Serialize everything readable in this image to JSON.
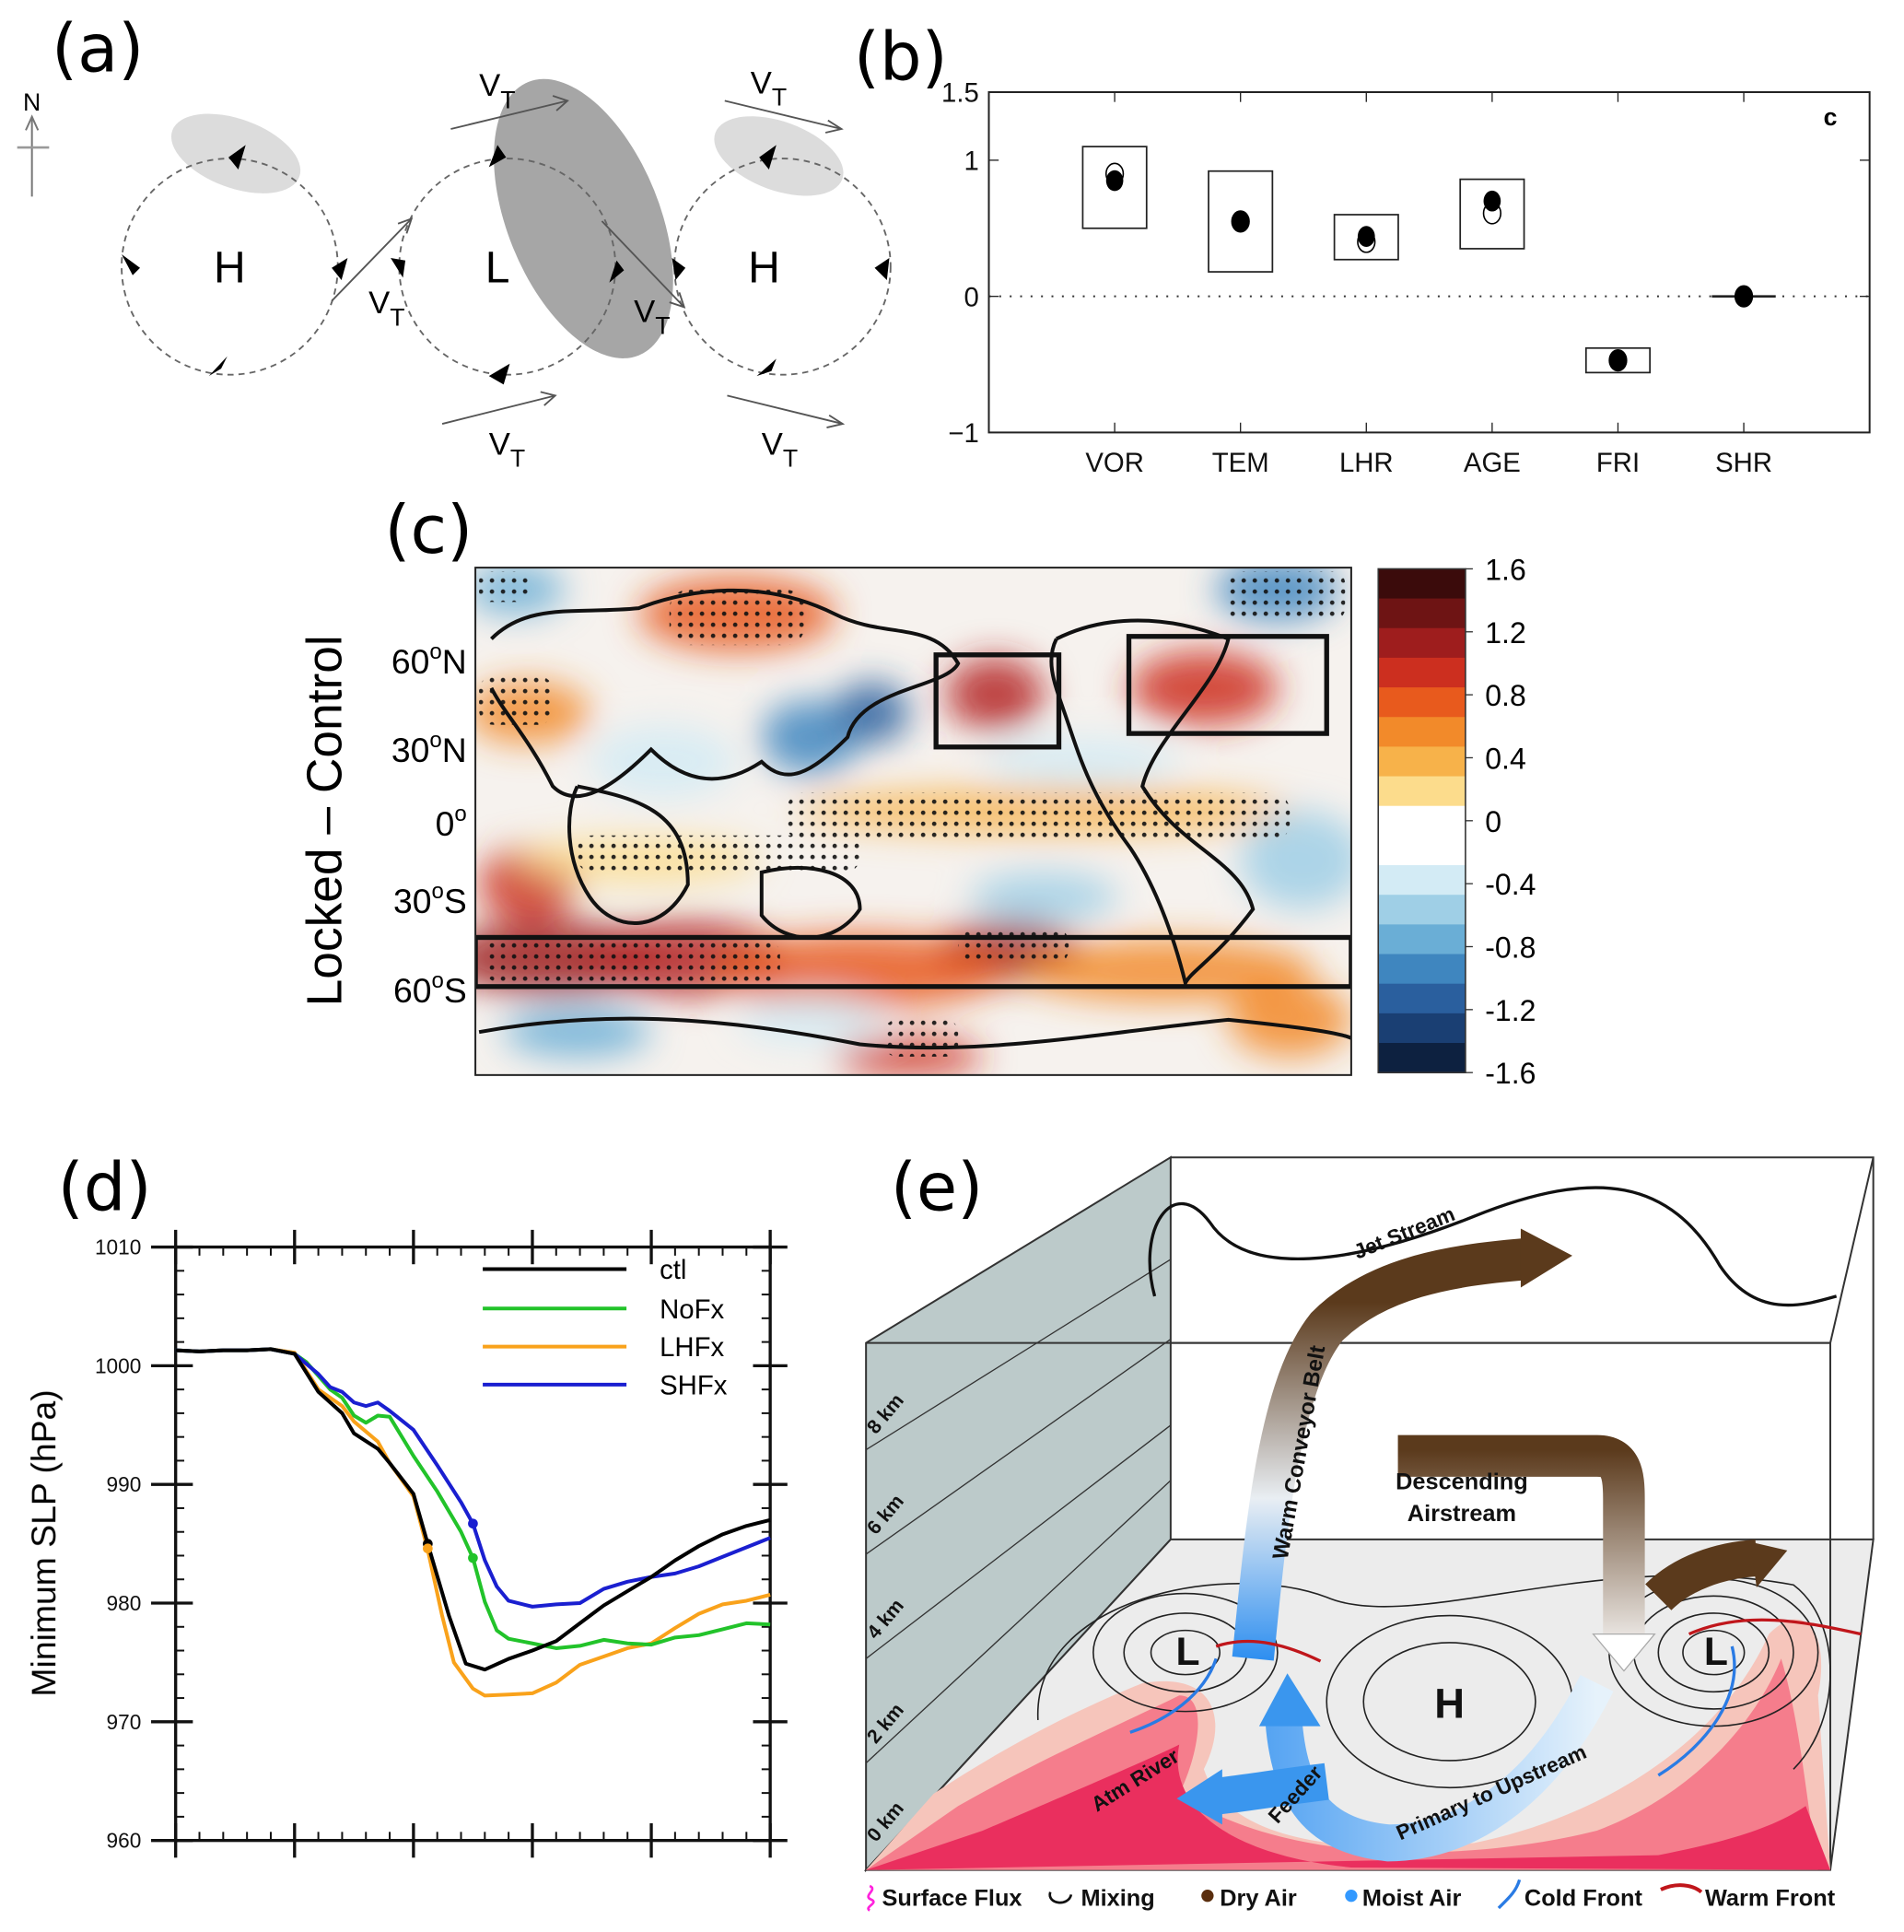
{
  "panels": {
    "a": "(a)",
    "b": "(b)",
    "c": "(c)",
    "d": "(d)",
    "e": "(e)"
  },
  "panel_a": {
    "north_label": "N",
    "high_left": "H",
    "low_center": "L",
    "high_right": "H",
    "vt_main": "V",
    "vt_sub": "T"
  },
  "chart_data": [
    {
      "panel": "(b)",
      "type": "scatter",
      "corner_label": "c",
      "categories": [
        "VOR",
        "TEM",
        "LHR",
        "AGE",
        "FRI",
        "SHR"
      ],
      "ylim": [
        -1,
        1.5
      ],
      "yticks": [
        -1,
        0,
        1,
        1.5
      ],
      "ytick_labels": [
        "−1",
        "0",
        "1",
        "1.5"
      ],
      "reference_line": 0,
      "filled_points": [
        0.85,
        0.55,
        0.44,
        0.7,
        -0.47,
        0.0
      ],
      "open_points": [
        0.9,
        0.55,
        0.4,
        0.61,
        -0.47,
        0.0
      ],
      "box_ranges": [
        [
          0.5,
          1.1
        ],
        [
          0.18,
          0.92
        ],
        [
          0.27,
          0.6
        ],
        [
          0.35,
          0.86
        ],
        [
          -0.56,
          -0.38
        ],
        [
          0.0,
          0.0
        ]
      ],
      "marker_colors": {
        "filled": "#000000",
        "open": "#ffffff"
      }
    },
    {
      "panel": "(c)",
      "type": "heatmap",
      "ylabel": "Locked – Control",
      "lat_labels": [
        {
          "num": "60",
          "sup": "o",
          "hemi": "N"
        },
        {
          "num": "30",
          "sup": "o",
          "hemi": "N"
        },
        {
          "num": "0",
          "sup": "o",
          "hemi": ""
        },
        {
          "num": "30",
          "sup": "o",
          "hemi": "S"
        },
        {
          "num": "60",
          "sup": "o",
          "hemi": "S"
        }
      ],
      "colorbar": {
        "range": [
          -1.6,
          1.6
        ],
        "ticks": [
          1.6,
          1.2,
          0.8,
          0.4,
          0,
          -0.4,
          -0.8,
          -1.2,
          -1.6
        ],
        "tick_labels": [
          "1.6",
          "1.2",
          "0.8",
          "0.4",
          "0",
          "-0.4",
          "-0.8",
          "-1.2",
          "-1.6"
        ],
        "colors": [
          "#3b0b0b",
          "#6e1414",
          "#9e1d1d",
          "#cc2f1f",
          "#e85a1d",
          "#f28a2a",
          "#f7b24a",
          "#fcdc8c",
          "#ffffff",
          "#ffffff",
          "#d3ebf5",
          "#9fcfe6",
          "#6aaed6",
          "#3f86bf",
          "#2a5f9e",
          "#1a3f73",
          "#0d2140"
        ]
      },
      "boxed_regions": 3,
      "stippling": "significance dots"
    },
    {
      "panel": "(d)",
      "type": "line",
      "ylabel": "Minimum SLP (hPa)",
      "ylim": [
        960,
        1010
      ],
      "yticks": [
        960,
        970,
        980,
        990,
        1000,
        1010
      ],
      "xlim": [
        0,
        25
      ],
      "x_tick_labels": "none",
      "legend_position": "top-right",
      "series": [
        {
          "name": "ctl",
          "color": "#000000",
          "x": [
            0,
            1,
            2,
            3,
            4,
            5,
            6,
            7,
            7.5,
            8.5,
            9,
            10,
            10.6,
            11.5,
            12.2,
            13,
            14,
            15,
            16,
            17,
            18,
            19,
            20,
            21,
            22,
            23,
            24,
            25
          ],
          "y": [
            1001.3,
            1001.2,
            1001.3,
            1001.3,
            1001.4,
            1001.0,
            997.8,
            996.0,
            994.3,
            993.0,
            991.8,
            989.2,
            985.0,
            978.9,
            974.9,
            974.4,
            975.3,
            976.0,
            976.8,
            978.3,
            979.8,
            981.0,
            982.2,
            983.6,
            984.8,
            985.8,
            986.5,
            987.0
          ],
          "marker": {
            "x": 10.6,
            "y": 985.0
          }
        },
        {
          "name": "NoFx",
          "color": "#22c32a",
          "x": [
            0,
            1,
            2,
            3,
            4,
            5,
            5.5,
            6.5,
            7,
            7.5,
            8,
            8.5,
            9,
            10,
            11,
            12,
            12.5,
            13,
            13.5,
            14,
            15,
            16,
            17,
            18,
            19,
            20,
            21,
            22,
            23,
            24,
            25
          ],
          "y": [
            1001.3,
            1001.2,
            1001.3,
            1001.3,
            1001.4,
            1001.0,
            1000.3,
            998.0,
            997.3,
            995.8,
            995.2,
            995.8,
            995.7,
            992.4,
            989.4,
            986.0,
            983.8,
            980.1,
            977.7,
            977.0,
            976.6,
            976.2,
            976.4,
            976.9,
            976.6,
            976.5,
            977.1,
            977.3,
            977.8,
            978.3,
            978.2
          ],
          "marker": {
            "x": 12.5,
            "y": 983.8
          }
        },
        {
          "name": "LHFx",
          "color": "#f9a21b",
          "x": [
            0,
            1,
            2,
            3,
            4,
            5,
            6,
            7,
            7.5,
            8.5,
            9,
            10,
            10.6,
            11.2,
            11.7,
            12.5,
            13,
            14,
            15,
            16,
            17,
            18,
            19,
            20,
            21,
            22,
            23,
            24,
            25
          ],
          "y": [
            1001.3,
            1001.2,
            1001.3,
            1001.3,
            1001.4,
            1001.1,
            998.0,
            996.6,
            995.3,
            993.6,
            991.8,
            989.0,
            984.5,
            979.0,
            975.0,
            972.8,
            972.2,
            972.3,
            972.4,
            973.3,
            974.8,
            975.5,
            976.2,
            976.6,
            977.9,
            979.1,
            979.9,
            980.2,
            980.7
          ],
          "marker": {
            "x": 10.6,
            "y": 984.6
          }
        },
        {
          "name": "SHFx",
          "color": "#1a1fd0",
          "x": [
            0,
            1,
            2,
            3,
            4,
            5,
            6,
            6.5,
            7,
            7.5,
            8,
            8.5,
            9,
            10,
            11,
            12,
            12.5,
            13,
            13.5,
            14,
            15,
            16,
            17,
            18,
            19,
            20,
            21,
            22,
            23,
            24,
            25
          ],
          "y": [
            1001.3,
            1001.2,
            1001.3,
            1001.3,
            1001.4,
            1001.0,
            999.3,
            998.2,
            997.8,
            996.9,
            996.6,
            996.9,
            996.2,
            994.6,
            991.6,
            988.5,
            986.7,
            983.6,
            981.4,
            980.2,
            979.7,
            979.9,
            980.0,
            981.2,
            981.8,
            982.2,
            982.5,
            983.1,
            983.9,
            984.7,
            985.5
          ],
          "marker": {
            "x": 12.5,
            "y": 986.7
          }
        }
      ]
    }
  ],
  "panel_e": {
    "jet_stream": "Jet Stream",
    "warm_conveyor_belt": "Warm Conveyor Belt",
    "descending_line1": "Descending",
    "descending_line2": "Airstream",
    "atm_river": "Atm River",
    "feeder": "Feeder",
    "primary_to_upstream": "Primary to Upstream",
    "low_left": "L",
    "high": "H",
    "low_right": "L",
    "altitudes": [
      "0 km",
      "2 km",
      "4 km",
      "6 km",
      "8 km"
    ],
    "legend": [
      {
        "label": "Surface Flux",
        "icon": "surface-flux-squiggle",
        "color": "#ff22dd"
      },
      {
        "label": "Mixing",
        "icon": "mixing-curl",
        "color": "#111111"
      },
      {
        "label": "Dry Air",
        "icon": "dot",
        "color": "#5a2e0e"
      },
      {
        "label": "Moist Air",
        "icon": "dot",
        "color": "#3399ff"
      },
      {
        "label": "Cold Front",
        "icon": "curve",
        "color": "#2a7be4"
      },
      {
        "label": "Warm Front",
        "icon": "curve",
        "color": "#c0161b"
      }
    ]
  }
}
